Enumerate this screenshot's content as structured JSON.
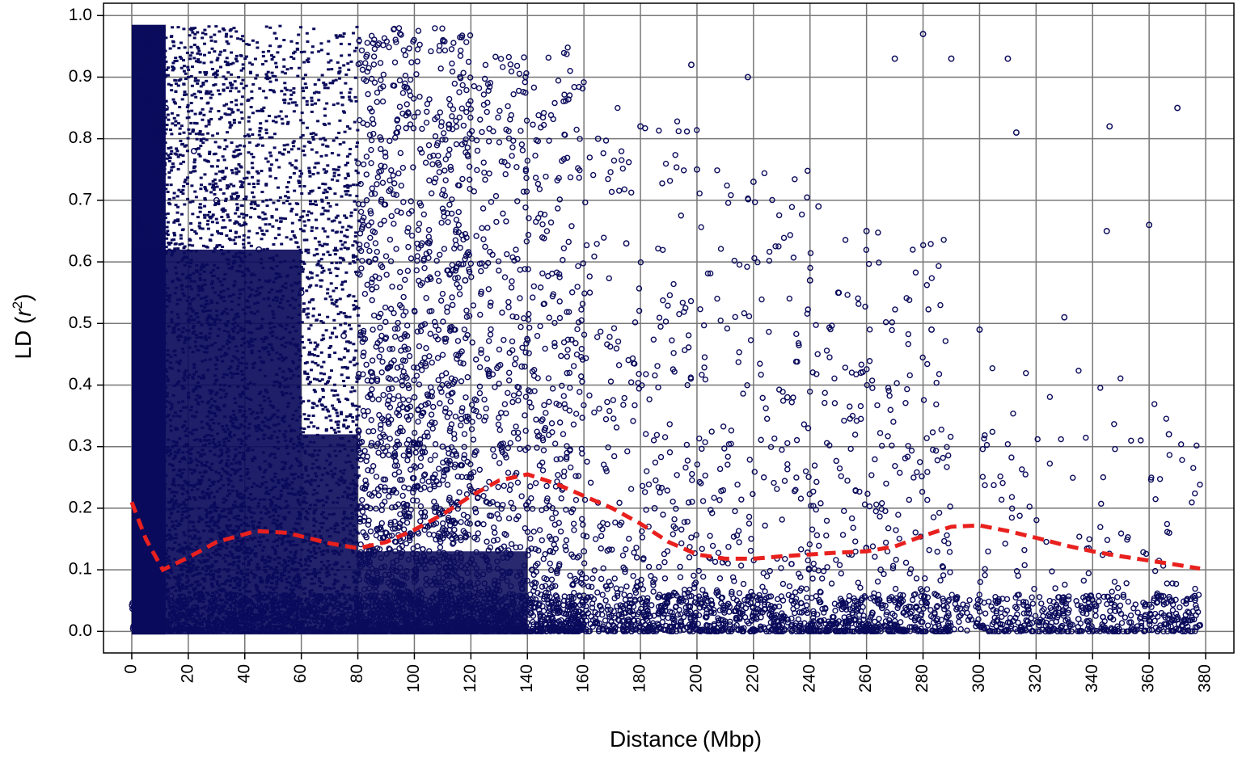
{
  "chart_data": {
    "type": "scatter",
    "title": "",
    "xlabel": "Distance",
    "xlabel_unit": "(Mbp)",
    "ylabel_prefix": "LD (",
    "ylabel_var": "r",
    "ylabel_sup": "2",
    "ylabel_suffix": ")",
    "xlim": [
      -10,
      390
    ],
    "ylim": [
      -0.035,
      1.02
    ],
    "x_ticks": [
      0,
      20,
      40,
      60,
      80,
      100,
      120,
      140,
      160,
      180,
      200,
      220,
      240,
      260,
      280,
      300,
      320,
      340,
      360,
      380
    ],
    "x_tick_labels": [
      "0",
      "20",
      "40",
      "60",
      "80",
      "100",
      "120",
      "140",
      "160",
      "180",
      "200",
      "220",
      "240",
      "260",
      "280",
      "300",
      "320",
      "340",
      "360",
      "380"
    ],
    "y_ticks": [
      0.0,
      0.1,
      0.2,
      0.3,
      0.4,
      0.5,
      0.6,
      0.7,
      0.8,
      0.9,
      1.0
    ],
    "y_tick_labels": [
      "0.0",
      "0.1",
      "0.2",
      "0.3",
      "0.4",
      "0.5",
      "0.6",
      "0.7",
      "0.8",
      "0.9",
      "1.0"
    ],
    "grid": true,
    "point_color": "#0b0b5c",
    "trend_color": "#e8201e",
    "series": [
      {
        "kind": "points",
        "x": [
          5,
          12,
          22,
          30,
          45,
          60,
          75,
          85,
          100,
          110,
          120,
          135,
          150,
          165,
          180,
          200,
          220,
          240,
          250,
          260,
          270,
          280,
          290,
          310,
          330,
          345,
          360,
          370,
          378,
          160,
          175,
          198,
          218,
          243,
          258,
          283,
          313,
          346,
          367,
          118,
          138,
          148,
          185,
          205,
          232,
          265,
          275,
          300,
          335,
          368
        ],
        "y": [
          0.95,
          0.85,
          0.78,
          0.7,
          0.62,
          0.55,
          0.48,
          0.42,
          0.38,
          0.3,
          0.25,
          0.2,
          0.15,
          0.8,
          0.82,
          0.75,
          0.73,
          0.57,
          0.55,
          0.65,
          0.93,
          0.97,
          0.93,
          0.93,
          0.51,
          0.65,
          0.66,
          0.85,
          0.01,
          0.13,
          0.63,
          0.92,
          0.9,
          0.69,
          0.42,
          0.49,
          0.81,
          0.82,
          0.32,
          0.57,
          0.43,
          0.13,
          0.2,
          0.05,
          0.38,
          0.1,
          0.04,
          0.49,
          0.02,
          0.05
        ]
      },
      {
        "kind": "trend",
        "x": [
          0,
          5,
          11,
          20,
          30,
          44,
          55,
          70,
          80,
          90,
          100,
          110,
          120,
          130,
          140,
          150,
          160,
          170,
          180,
          190,
          200,
          210,
          220,
          230,
          240,
          250,
          260,
          270,
          280,
          290,
          300,
          310,
          320,
          330,
          340,
          350,
          360,
          370,
          378
        ],
        "y": [
          0.21,
          0.15,
          0.1,
          0.12,
          0.145,
          0.163,
          0.16,
          0.143,
          0.135,
          0.145,
          0.165,
          0.19,
          0.22,
          0.245,
          0.255,
          0.24,
          0.22,
          0.2,
          0.175,
          0.145,
          0.125,
          0.118,
          0.118,
          0.122,
          0.125,
          0.128,
          0.13,
          0.138,
          0.155,
          0.17,
          0.172,
          0.163,
          0.152,
          0.14,
          0.13,
          0.122,
          0.115,
          0.108,
          0.102
        ]
      }
    ]
  }
}
